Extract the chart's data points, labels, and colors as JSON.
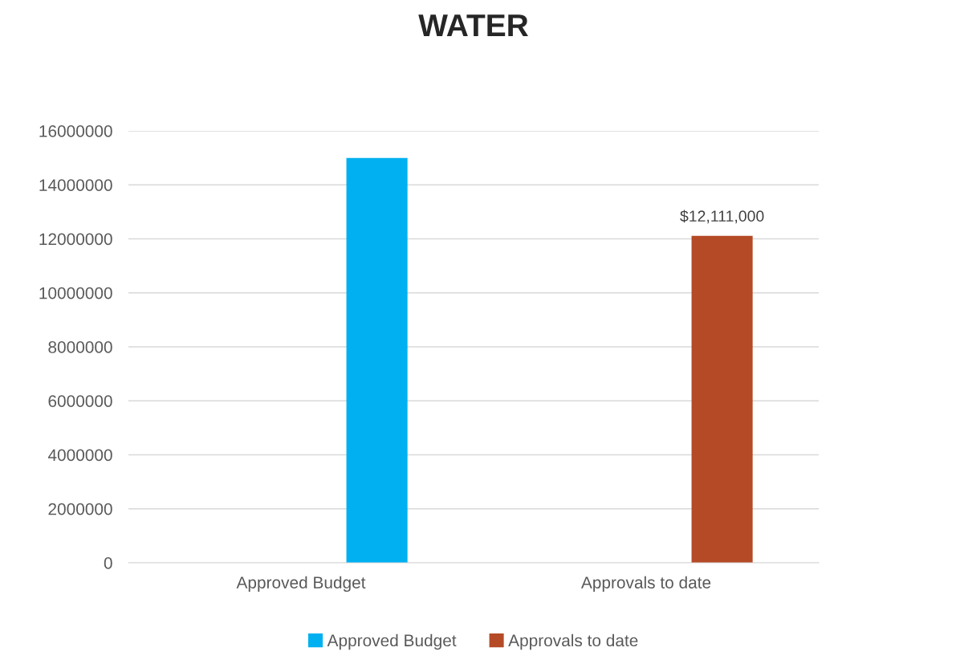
{
  "chart_data": {
    "type": "bar",
    "title": "WATER",
    "categories": [
      "Approved Budget",
      "Approvals to date"
    ],
    "series": [
      {
        "name": "Approved Budget",
        "color": "#00b0f0",
        "values": [
          15000000,
          null
        ]
      },
      {
        "name": "Approvals to date",
        "color": "#b54a26",
        "values": [
          null,
          12111000
        ],
        "value_labels": [
          null,
          "$12,111,000"
        ]
      }
    ],
    "ylim": [
      0,
      16000000
    ],
    "yticks": [
      0,
      2000000,
      4000000,
      6000000,
      8000000,
      10000000,
      12000000,
      14000000,
      16000000
    ],
    "grid": "y",
    "legend": "bottom"
  }
}
